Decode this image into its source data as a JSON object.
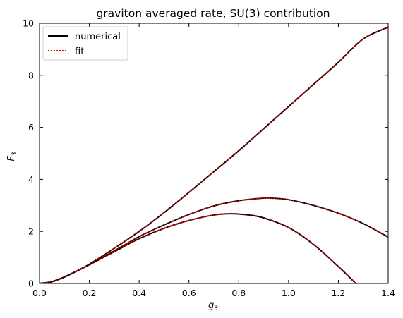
{
  "chart_data": {
    "type": "line",
    "title": "graviton averaged rate, SU(3) contribution",
    "xlabel": "g",
    "xlabel_sub": "3",
    "ylabel": "F",
    "ylabel_sub": "3",
    "xlim": [
      0,
      1.4
    ],
    "ylim": [
      0,
      10
    ],
    "xticks": [
      "0.0",
      "0.2",
      "0.4",
      "0.6",
      "0.8",
      "1.0",
      "1.2",
      "1.4"
    ],
    "yticks": [
      "0",
      "2",
      "4",
      "6",
      "8",
      "10"
    ],
    "grid": false,
    "legend_placement": "top-left",
    "legend": [
      {
        "label": "numerical",
        "color": "#000000",
        "style": "solid"
      },
      {
        "label": "fit",
        "color": "#ff0000",
        "style": "dotted"
      }
    ],
    "curves": [
      {
        "x": [
          0,
          0.05,
          0.1,
          0.15,
          0.2,
          0.3,
          0.4,
          0.5,
          0.6,
          0.7,
          0.8,
          0.9,
          1.0,
          1.1,
          1.2,
          1.3,
          1.4
        ],
        "y": [
          0,
          0.07,
          0.25,
          0.48,
          0.74,
          1.35,
          2.0,
          2.72,
          3.5,
          4.3,
          5.1,
          5.95,
          6.8,
          7.65,
          8.5,
          9.4,
          9.85
        ]
      },
      {
        "x": [
          0,
          0.05,
          0.1,
          0.15,
          0.2,
          0.3,
          0.4,
          0.5,
          0.6,
          0.7,
          0.8,
          0.9,
          0.93,
          1.0,
          1.1,
          1.2,
          1.3,
          1.4
        ],
        "y": [
          0,
          0.07,
          0.25,
          0.48,
          0.72,
          1.25,
          1.8,
          2.25,
          2.65,
          2.98,
          3.18,
          3.28,
          3.28,
          3.22,
          3.0,
          2.7,
          2.3,
          1.78
        ]
      },
      {
        "x": [
          0,
          0.05,
          0.1,
          0.15,
          0.2,
          0.3,
          0.4,
          0.5,
          0.6,
          0.7,
          0.77,
          0.85,
          0.9,
          1.0,
          1.1,
          1.2,
          1.27
        ],
        "y": [
          0,
          0.07,
          0.25,
          0.48,
          0.72,
          1.22,
          1.72,
          2.12,
          2.42,
          2.63,
          2.68,
          2.62,
          2.52,
          2.15,
          1.5,
          0.65,
          0
        ]
      }
    ]
  }
}
